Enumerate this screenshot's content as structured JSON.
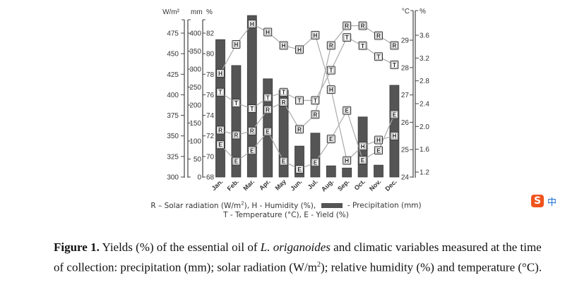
{
  "chart_data": {
    "type": "bar",
    "title": "",
    "categories": [
      "Jan.",
      "Feb.",
      "Mar.",
      "Apr.",
      "May",
      "Jun.",
      "Jul.",
      "Aug.",
      "Sep.",
      "Oct.",
      "Nov.",
      "Dec."
    ],
    "series": [
      {
        "name": "Precipitation (mm)",
        "type": "bar",
        "axis": "mm",
        "color": "#555555",
        "values": [
          382,
          310,
          449,
          273,
          241,
          86,
          122,
          31,
          25,
          167,
          33,
          255
        ]
      },
      {
        "name": "Solar radiation (W/m²)",
        "type": "line",
        "marker": "R",
        "axis": "wm2",
        "values": [
          357,
          351,
          356,
          382,
          391,
          358,
          376,
          460,
          484,
          484,
          472,
          460
        ]
      },
      {
        "name": "Humidity (%)",
        "type": "line",
        "marker": "H",
        "axis": "hum",
        "values": [
          78.1,
          80.9,
          82.9,
          82.1,
          80.8,
          80.4,
          81.8,
          76.5,
          69.6,
          71.0,
          71.6,
          72.0
        ]
      },
      {
        "name": "Temperature (°C)",
        "type": "line",
        "marker": "T",
        "axis": "temp",
        "values": [
          27.1,
          26.7,
          26.5,
          26.9,
          27.1,
          26.8,
          26.8,
          27.9,
          29.1,
          28.8,
          28.4,
          28.1
        ]
      },
      {
        "name": "Yield (%)",
        "type": "line",
        "marker": "E",
        "axis": "yield",
        "values": [
          1.68,
          1.39,
          1.58,
          1.91,
          1.39,
          1.25,
          1.37,
          1.78,
          2.28,
          1.41,
          1.58,
          2.21
        ]
      }
    ],
    "axes": {
      "wm2": {
        "label": "W/m²",
        "side": "left",
        "range": [
          300,
          475
        ],
        "ticks": [
          300,
          325,
          350,
          375,
          400,
          425,
          450,
          475
        ]
      },
      "mm": {
        "label": "mm",
        "side": "left",
        "range": [
          0,
          400
        ],
        "ticks": [
          0,
          50,
          100,
          150,
          200,
          250,
          300,
          350,
          400
        ]
      },
      "hum": {
        "label": "%",
        "side": "left",
        "range": [
          68,
          82
        ],
        "ticks": [
          68,
          70,
          72,
          74,
          76,
          78,
          80,
          82
        ]
      },
      "temp": {
        "label": "°C",
        "side": "right",
        "range": [
          24,
          29
        ],
        "ticks": [
          24,
          25,
          26,
          27,
          28,
          29
        ]
      },
      "yield": {
        "label": "%",
        "side": "right",
        "range": [
          1.2,
          3.6
        ],
        "ticks": [
          "1.2",
          "1.6",
          "2.0",
          "2.4",
          "2.8",
          "3.2",
          "3.6"
        ]
      }
    },
    "legend": {
      "position": "bottom",
      "line1_a": "R – Solar radiation (W/m",
      "line1_b": "), H - Humidity (%),",
      "line1_c": "- Precipitation (mm)",
      "line2": "T - Temperature (°C), E - Yield (%)",
      "sup": "2"
    },
    "grid": false
  },
  "caption": {
    "label": "Figure 1.",
    "text_a": " Yields (%) of the essential oil of ",
    "species": "L. origanoides",
    "text_b": " and climatic variables measured at the time of collection: precipitation (mm); solar radiation (W/m",
    "sup": "2",
    "text_c": "); relative humidity (%) and temperature (°C)."
  },
  "ime": {
    "logo": "S",
    "mode": "中"
  }
}
